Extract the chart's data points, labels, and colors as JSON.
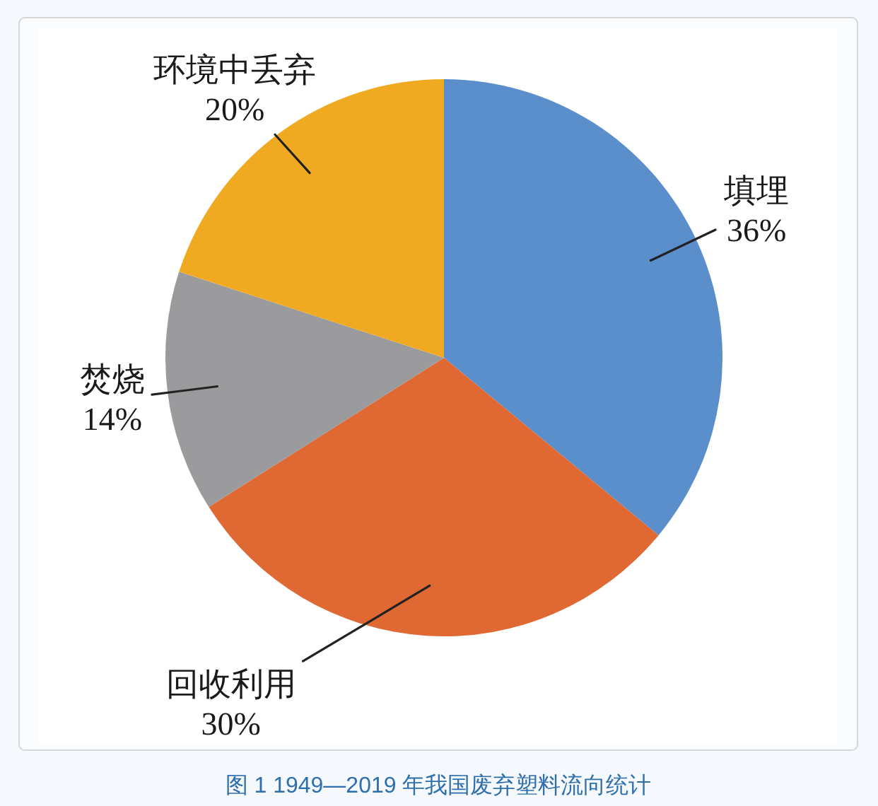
{
  "chart_data": {
    "type": "pie",
    "title": "图 1 1949—2019 年我国废弃塑料流向统计",
    "categories": [
      "填埋",
      "回收利用",
      "焚烧",
      "环境中丢弃"
    ],
    "values": [
      36,
      30,
      14,
      20
    ],
    "colors": [
      "#5b8fcb",
      "#e06833",
      "#9b9b9e",
      "#f0aa22"
    ],
    "value_labels": [
      "36%",
      "30%",
      "14%",
      "20%"
    ]
  }
}
